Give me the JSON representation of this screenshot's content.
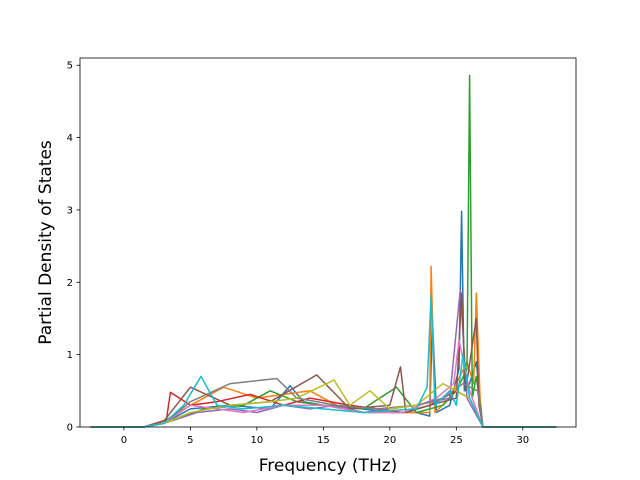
{
  "chart_data": {
    "type": "line",
    "title": "",
    "xlabel": "Frequency (THz)",
    "ylabel": "Partial Density of States",
    "xlim": [
      -3.3,
      34
    ],
    "ylim": [
      0,
      5.1
    ],
    "xticks": [
      0,
      5,
      10,
      15,
      20,
      25,
      30
    ],
    "yticks": [
      0,
      1,
      2,
      3,
      4,
      5
    ],
    "grid": false,
    "legend": "none",
    "series": [
      {
        "color": "#1f77b4",
        "x": [
          -2.5,
          1.5,
          3,
          5,
          8,
          11,
          12.5,
          13.5,
          15,
          18,
          20,
          22,
          23,
          23.2,
          23.5,
          24.5,
          25.2,
          25.4,
          25.6,
          26,
          26.5,
          27,
          32.5
        ],
        "y": [
          0,
          0,
          0.05,
          0.25,
          0.3,
          0.25,
          0.57,
          0.35,
          0.3,
          0.25,
          0.2,
          0.2,
          0.15,
          1.5,
          0.2,
          0.3,
          0.8,
          2.98,
          0.5,
          0.6,
          0.9,
          0,
          0
        ]
      },
      {
        "color": "#ff7f0e",
        "x": [
          -2.5,
          1.5,
          3,
          5,
          7.5,
          10,
          12,
          14,
          16,
          18,
          21,
          23,
          23.1,
          23.4,
          24.5,
          25,
          25.8,
          26.3,
          26.5,
          26.8,
          27,
          32.5
        ],
        "y": [
          0,
          0,
          0.08,
          0.3,
          0.55,
          0.4,
          0.45,
          0.5,
          0.3,
          0.2,
          0.2,
          0.2,
          2.22,
          0.2,
          0.4,
          0.6,
          0.9,
          0.6,
          1.85,
          0.3,
          0,
          0
        ]
      },
      {
        "color": "#2ca02c",
        "x": [
          -2.5,
          1.5,
          3,
          6,
          9,
          11,
          13,
          15,
          18,
          20.5,
          22,
          24,
          25,
          25.8,
          26,
          26.2,
          26.5,
          27,
          32.5
        ],
        "y": [
          0,
          0,
          0.05,
          0.25,
          0.3,
          0.5,
          0.35,
          0.3,
          0.25,
          0.55,
          0.2,
          0.3,
          0.5,
          0.8,
          4.86,
          0.4,
          0.7,
          0,
          0
        ]
      },
      {
        "color": "#d62728",
        "x": [
          -2.5,
          1.5,
          3.2,
          3.5,
          5,
          7,
          9.5,
          12,
          14,
          17,
          19,
          21,
          23,
          25,
          26,
          27,
          32.5
        ],
        "y": [
          0,
          0,
          0.1,
          0.48,
          0.3,
          0.35,
          0.45,
          0.3,
          0.4,
          0.3,
          0.25,
          0.2,
          0.3,
          0.5,
          0.4,
          0,
          0
        ]
      },
      {
        "color": "#9467bd",
        "x": [
          -2.5,
          1.5,
          3,
          5.5,
          8,
          10,
          12,
          14,
          16,
          18,
          20,
          22,
          24.5,
          25.3,
          25.8,
          27,
          32.5
        ],
        "y": [
          0,
          0,
          0.05,
          0.2,
          0.25,
          0.2,
          0.3,
          0.25,
          0.3,
          0.2,
          0.25,
          0.3,
          0.4,
          1.9,
          0.4,
          0,
          0
        ]
      },
      {
        "color": "#8c564b",
        "x": [
          -2.5,
          1.5,
          3,
          5,
          8,
          11,
          14.5,
          17,
          20,
          20.8,
          21.2,
          23,
          25,
          25.4,
          25.7,
          26.5,
          26.7,
          27,
          32.5
        ],
        "y": [
          0,
          0,
          0.08,
          0.55,
          0.3,
          0.35,
          0.72,
          0.25,
          0.3,
          0.83,
          0.2,
          0.3,
          0.4,
          1.85,
          0.5,
          1.5,
          0.3,
          0,
          0
        ]
      },
      {
        "color": "#e377c2",
        "x": [
          -2.5,
          1.5,
          3,
          5,
          7,
          9,
          12,
          15,
          18,
          21,
          23.5,
          24.8,
          25.2,
          26,
          27,
          32.5
        ],
        "y": [
          0,
          0,
          0.05,
          0.3,
          0.25,
          0.2,
          0.3,
          0.3,
          0.2,
          0.2,
          0.4,
          0.6,
          1.2,
          0.5,
          0,
          0
        ]
      },
      {
        "color": "#7f7f7f",
        "x": [
          -2.5,
          1.5,
          3,
          5,
          8,
          11.5,
          13,
          16,
          19,
          22,
          24,
          25.5,
          26.6,
          27,
          32.5
        ],
        "y": [
          0,
          0,
          0.05,
          0.35,
          0.6,
          0.67,
          0.4,
          0.3,
          0.25,
          0.3,
          0.4,
          0.6,
          0.5,
          0,
          0
        ]
      },
      {
        "color": "#bcbd22",
        "x": [
          -2.5,
          1.5,
          3,
          5,
          8,
          11,
          13,
          15.8,
          17,
          18.5,
          20,
          22,
          24,
          25,
          26,
          27,
          32.5
        ],
        "y": [
          0,
          0,
          0.05,
          0.2,
          0.3,
          0.35,
          0.4,
          0.65,
          0.3,
          0.5,
          0.25,
          0.3,
          0.6,
          0.5,
          0.4,
          0,
          0
        ]
      },
      {
        "color": "#17becf",
        "x": [
          -2.5,
          1.5,
          3,
          4.5,
          5.8,
          7,
          9,
          12,
          15,
          18,
          22,
          22.8,
          23.1,
          23.4,
          24.5,
          25,
          25.5,
          26,
          27,
          32.5
        ],
        "y": [
          0,
          0,
          0.05,
          0.3,
          0.7,
          0.3,
          0.25,
          0.3,
          0.25,
          0.2,
          0.25,
          0.55,
          1.82,
          0.3,
          0.5,
          0.3,
          1.0,
          0.4,
          0,
          0
        ]
      }
    ]
  }
}
